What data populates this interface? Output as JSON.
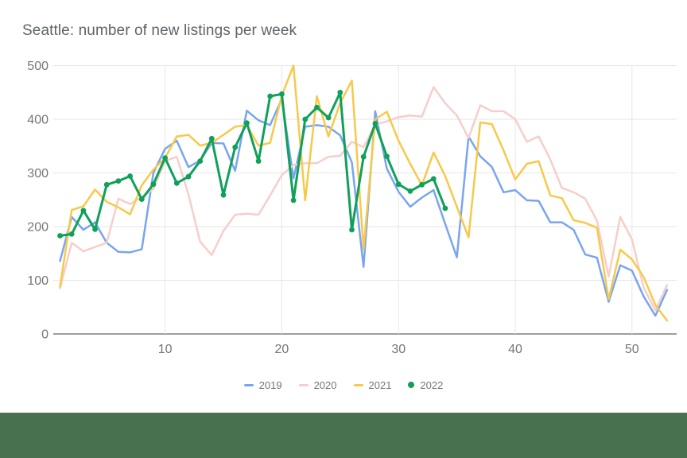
{
  "page": {
    "background": "#ffffff",
    "footer_color": "#48724f"
  },
  "chart_data": {
    "type": "line",
    "title": "Seattle: number of new listings per week",
    "title_color": "#5f6368",
    "xlabel": "",
    "ylabel": "",
    "xlim": [
      1,
      53
    ],
    "ylim": [
      0,
      500
    ],
    "x_ticks": [
      10,
      20,
      30,
      40,
      50
    ],
    "y_ticks": [
      0,
      100,
      200,
      300,
      400,
      500
    ],
    "grid": true,
    "grid_color": "#e6e6e6",
    "axis_line_color": "#9e9e9e",
    "tick_label_color": "#757575",
    "legend_position": "bottom",
    "x_unit": "week",
    "series": [
      {
        "name": "2019",
        "color": "#79a5f0",
        "marker": "none",
        "values": [
          136,
          218,
          194,
          208,
          170,
          153,
          152,
          158,
          300,
          345,
          360,
          311,
          323,
          356,
          355,
          304,
          416,
          398,
          389,
          438,
          290,
          386,
          389,
          386,
          370,
          320,
          125,
          415,
          308,
          265,
          237,
          254,
          268,
          205,
          143,
          368,
          331,
          311,
          264,
          268,
          249,
          248,
          208,
          208,
          194,
          148,
          142,
          60,
          128,
          118,
          70,
          34,
          82
        ]
      },
      {
        "name": "2020",
        "color": "#f6cecb",
        "marker": "none",
        "values": [
          85,
          170,
          154,
          162,
          170,
          252,
          242,
          255,
          270,
          322,
          330,
          260,
          172,
          147,
          192,
          222,
          224,
          222,
          258,
          296,
          315,
          318,
          318,
          330,
          332,
          358,
          348,
          390,
          396,
          404,
          407,
          405,
          460,
          430,
          407,
          365,
          426,
          415,
          415,
          400,
          358,
          368,
          325,
          272,
          264,
          252,
          211,
          107,
          218,
          176,
          86,
          44,
          91
        ]
      },
      {
        "name": "2021",
        "color": "#f7c94b",
        "marker": "none",
        "values": [
          88,
          231,
          238,
          269,
          246,
          236,
          223,
          277,
          306,
          328,
          368,
          371,
          351,
          356,
          371,
          386,
          389,
          351,
          356,
          444,
          500,
          249,
          443,
          368,
          430,
          472,
          158,
          400,
          414,
          360,
          317,
          277,
          338,
          294,
          237,
          180,
          394,
          391,
          342,
          288,
          317,
          322,
          258,
          253,
          212,
          207,
          198,
          65,
          157,
          139,
          106,
          54,
          25
        ]
      },
      {
        "name": "2022",
        "color": "#10a05a",
        "marker": "circle",
        "values": [
          183,
          186,
          230,
          195,
          278,
          285,
          294,
          251,
          279,
          328,
          281,
          293,
          322,
          364,
          259,
          348,
          393,
          322,
          443,
          447,
          249,
          400,
          422,
          403,
          450,
          194,
          330,
          392,
          331,
          279,
          266,
          278,
          289,
          234
        ]
      }
    ]
  }
}
